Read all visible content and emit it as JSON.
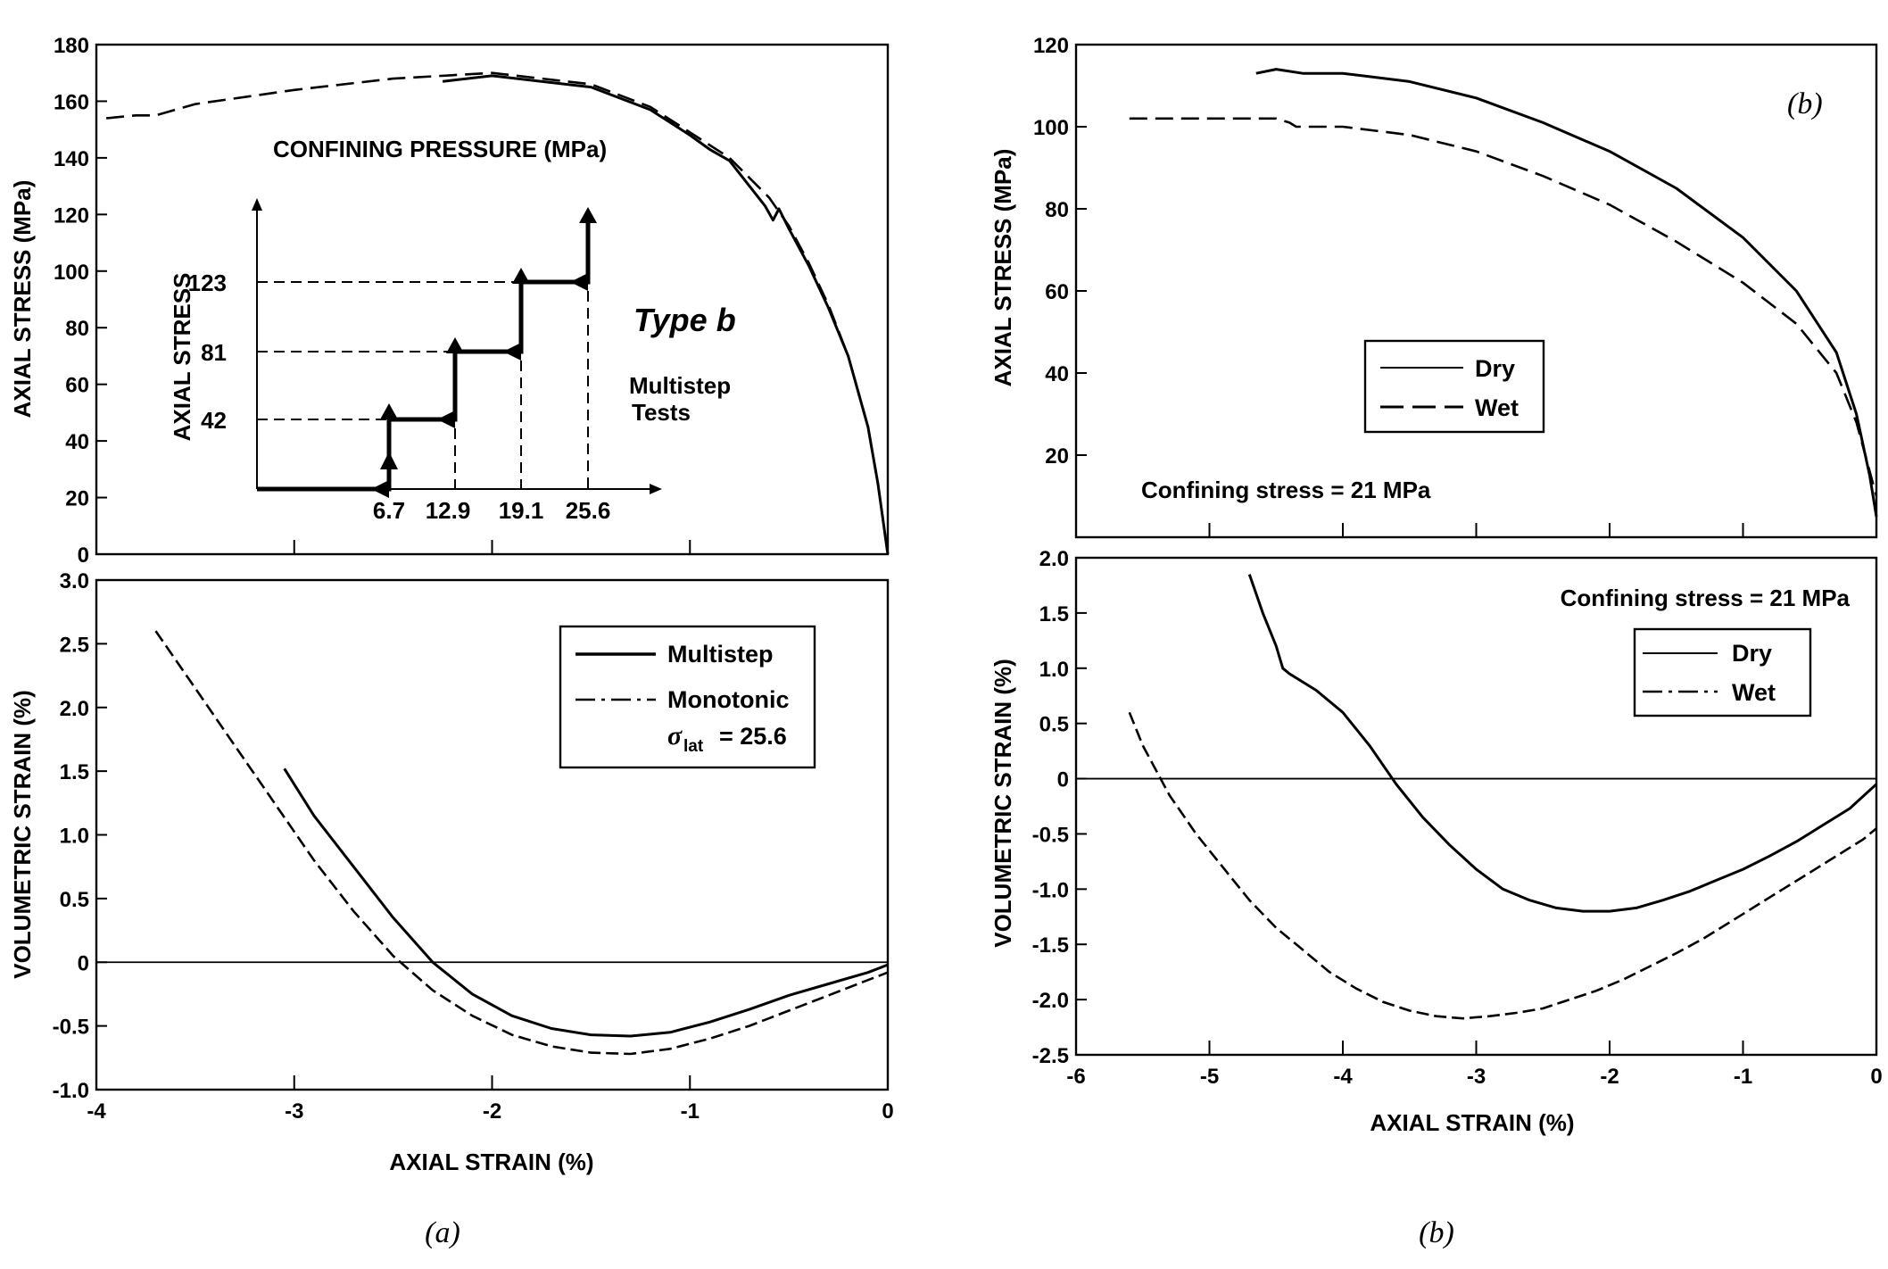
{
  "panel_captions": {
    "a": "(a)",
    "b": "(b)"
  },
  "chart_data": [
    {
      "id": "a_top",
      "type": "line",
      "ylabel": "AXIAL STRESS (MPa)",
      "xlim": [
        -4,
        0
      ],
      "ylim": [
        0,
        180
      ],
      "xticks": [
        -3,
        -2,
        -1
      ],
      "yticks": [
        0,
        20,
        40,
        60,
        80,
        100,
        120,
        140,
        160,
        180
      ],
      "annotations": {
        "confining_pressure_title": "CONFINING PRESSURE (MPa)",
        "type_label": "Type b",
        "multistep_line1": "Multistep",
        "multistep_line2": "Tests"
      },
      "inset": {
        "ylabel": "AXIAL STRESS",
        "confining_steps": [
          6.7,
          12.9,
          19.1,
          25.6
        ],
        "stress_levels": [
          42,
          81,
          123
        ]
      },
      "series": [
        {
          "style": "solid",
          "color": "#000000",
          "x": [
            -2.25,
            -2.0,
            -1.5,
            -1.2,
            -1.0,
            -0.9,
            -0.8,
            -0.62,
            -0.58,
            -0.55,
            -0.5,
            -0.4,
            -0.3,
            -0.2,
            -0.1,
            -0.05,
            0
          ],
          "y": [
            167,
            169,
            165,
            157,
            148,
            143,
            139,
            123,
            118,
            122,
            115,
            102,
            87,
            70,
            45,
            25,
            0
          ]
        },
        {
          "style": "dashed",
          "color": "#000000",
          "x": [
            -3.95,
            -3.8,
            -3.7,
            -3.5,
            -3.0,
            -2.5,
            -2.0,
            -1.5,
            -1.2,
            -1.0,
            -0.8,
            -0.6,
            -0.5,
            -0.4,
            -0.3,
            -0.2,
            -0.1,
            -0.05,
            0
          ],
          "y": [
            154,
            155,
            155,
            159,
            164,
            168,
            170,
            166,
            158,
            149,
            140,
            126,
            116,
            103,
            88,
            70,
            45,
            25,
            0
          ]
        }
      ]
    },
    {
      "id": "a_bottom",
      "type": "line",
      "xlabel": "AXIAL STRAIN (%)",
      "ylabel": "VOLUMETRIC STRAIN (%)",
      "xlim": [
        -4,
        0
      ],
      "ylim": [
        -1.0,
        3.0
      ],
      "xticks": [
        -4,
        -3,
        -2,
        -1,
        0
      ],
      "yticks": [
        -1.0,
        -0.5,
        0,
        0.5,
        1.0,
        1.5,
        2.0,
        2.5,
        3.0
      ],
      "legend": {
        "placement": "top-right",
        "entries": [
          "Multistep",
          "Monotonic"
        ],
        "monotonic_subscript_label": "σ",
        "monotonic_subscript": "lat",
        "monotonic_value": "= 25.6"
      },
      "series": [
        {
          "name": "Multistep",
          "style": "solid",
          "color": "#000000",
          "x": [
            -3.05,
            -2.9,
            -2.7,
            -2.5,
            -2.3,
            -2.1,
            -1.9,
            -1.7,
            -1.5,
            -1.3,
            -1.1,
            -0.9,
            -0.7,
            -0.5,
            -0.3,
            -0.1,
            0
          ],
          "y": [
            1.52,
            1.15,
            0.75,
            0.35,
            0.0,
            -0.25,
            -0.42,
            -0.52,
            -0.57,
            -0.58,
            -0.55,
            -0.47,
            -0.37,
            -0.26,
            -0.17,
            -0.08,
            -0.02
          ]
        },
        {
          "name": "Monotonic",
          "style": "dashed",
          "color": "#000000",
          "x": [
            -3.7,
            -3.5,
            -3.3,
            -3.1,
            -2.9,
            -2.7,
            -2.5,
            -2.3,
            -2.1,
            -1.9,
            -1.7,
            -1.5,
            -1.3,
            -1.1,
            -0.9,
            -0.7,
            -0.5,
            -0.3,
            -0.1,
            0
          ],
          "y": [
            2.6,
            2.15,
            1.7,
            1.25,
            0.8,
            0.4,
            0.05,
            -0.22,
            -0.42,
            -0.57,
            -0.66,
            -0.71,
            -0.72,
            -0.68,
            -0.6,
            -0.5,
            -0.38,
            -0.26,
            -0.14,
            -0.08
          ]
        }
      ]
    },
    {
      "id": "b_top",
      "type": "line",
      "ylabel": "AXIAL STRESS (MPa)",
      "xlim": [
        -6,
        0
      ],
      "ylim": [
        0,
        120
      ],
      "yticks": [
        20,
        40,
        60,
        80,
        100,
        120
      ],
      "xticks_unlabeled": [
        -5,
        -4,
        -3,
        -2,
        -1
      ],
      "annotations": {
        "confining": "Confining stress = 21 MPa",
        "panel": "(b)"
      },
      "legend": {
        "placement": "center-right",
        "entries": [
          "Dry",
          "Wet"
        ]
      },
      "series": [
        {
          "name": "Dry",
          "style": "solid",
          "color": "#000000",
          "x": [
            -4.65,
            -4.5,
            -4.3,
            -4.0,
            -3.5,
            -3.0,
            -2.5,
            -2.0,
            -1.5,
            -1.0,
            -0.6,
            -0.3,
            -0.15,
            -0.05,
            0
          ],
          "y": [
            113,
            114,
            113,
            113,
            111,
            107,
            101,
            94,
            85,
            73,
            60,
            45,
            30,
            15,
            5
          ]
        },
        {
          "name": "Wet",
          "style": "dashed",
          "color": "#000000",
          "x": [
            -5.6,
            -5.0,
            -4.5,
            -4.4,
            -4.35,
            -4.0,
            -3.5,
            -3.0,
            -2.5,
            -2.0,
            -1.5,
            -1.0,
            -0.6,
            -0.3,
            -0.15,
            0
          ],
          "y": [
            102,
            102,
            102,
            101,
            100,
            100,
            98,
            94,
            88,
            81,
            72,
            62,
            52,
            40,
            28,
            10
          ]
        }
      ]
    },
    {
      "id": "b_bottom",
      "type": "line",
      "xlabel": "AXIAL STRAIN (%)",
      "ylabel": "VOLUMETRIC STRAIN (%)",
      "xlim": [
        -6,
        0
      ],
      "ylim": [
        -2.5,
        2.0
      ],
      "xticks": [
        -6,
        -5,
        -4,
        -3,
        -2,
        -1,
        0
      ],
      "yticks": [
        -2.5,
        -2.0,
        -1.5,
        -1.0,
        -0.5,
        0,
        0.5,
        1.0,
        1.5,
        2.0
      ],
      "annotations": {
        "confining": "Confining stress = 21 MPa"
      },
      "legend": {
        "placement": "top-right",
        "entries": [
          "Dry",
          "Wet"
        ]
      },
      "series": [
        {
          "name": "Dry",
          "style": "solid",
          "color": "#000000",
          "x": [
            -4.7,
            -4.6,
            -4.5,
            -4.45,
            -4.4,
            -4.2,
            -4.0,
            -3.8,
            -3.6,
            -3.4,
            -3.2,
            -3.0,
            -2.8,
            -2.6,
            -2.4,
            -2.2,
            -2.0,
            -1.8,
            -1.6,
            -1.4,
            -1.2,
            -1.0,
            -0.8,
            -0.6,
            -0.4,
            -0.2,
            0
          ],
          "y": [
            1.85,
            1.5,
            1.2,
            1.0,
            0.95,
            0.8,
            0.6,
            0.3,
            -0.05,
            -0.35,
            -0.6,
            -0.82,
            -1.0,
            -1.1,
            -1.17,
            -1.2,
            -1.2,
            -1.17,
            -1.1,
            -1.02,
            -0.92,
            -0.82,
            -0.7,
            -0.57,
            -0.42,
            -0.27,
            -0.05
          ]
        },
        {
          "name": "Wet",
          "style": "dashed",
          "color": "#000000",
          "x": [
            -5.6,
            -5.5,
            -5.3,
            -5.1,
            -4.9,
            -4.7,
            -4.5,
            -4.3,
            -4.1,
            -3.9,
            -3.7,
            -3.5,
            -3.3,
            -3.1,
            -2.9,
            -2.7,
            -2.5,
            -2.3,
            -2.1,
            -1.9,
            -1.7,
            -1.5,
            -1.3,
            -1.1,
            -0.9,
            -0.7,
            -0.5,
            -0.3,
            -0.1,
            0
          ],
          "y": [
            0.6,
            0.3,
            -0.15,
            -0.5,
            -0.8,
            -1.1,
            -1.35,
            -1.55,
            -1.75,
            -1.9,
            -2.02,
            -2.1,
            -2.15,
            -2.17,
            -2.15,
            -2.12,
            -2.08,
            -2.0,
            -1.92,
            -1.82,
            -1.7,
            -1.58,
            -1.45,
            -1.3,
            -1.15,
            -1.0,
            -0.85,
            -0.7,
            -0.55,
            -0.45
          ]
        }
      ]
    }
  ]
}
